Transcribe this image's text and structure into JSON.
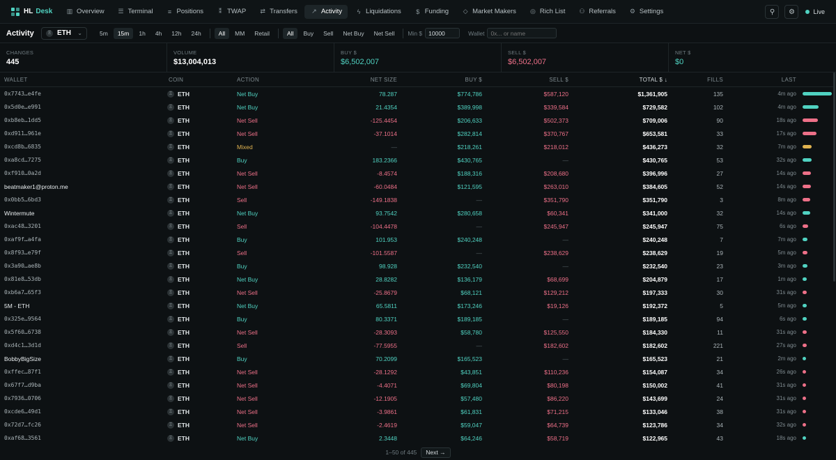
{
  "brand": {
    "hl": "HL",
    "desk": "Desk"
  },
  "nav": [
    {
      "label": "Overview",
      "icon": "bar-chart-icon",
      "glyph": "▥"
    },
    {
      "label": "Terminal",
      "icon": "terminal-icon",
      "glyph": "☰"
    },
    {
      "label": "Positions",
      "icon": "list-icon",
      "glyph": "≡"
    },
    {
      "label": "TWAP",
      "icon": "timer-icon",
      "glyph": "⁑"
    },
    {
      "label": "Transfers",
      "icon": "transfer-icon",
      "glyph": "⇄"
    },
    {
      "label": "Activity",
      "icon": "trend-icon",
      "glyph": "↗",
      "active": true
    },
    {
      "label": "Liquidations",
      "icon": "lightning-icon",
      "glyph": "ϟ"
    },
    {
      "label": "Funding",
      "icon": "coin-icon",
      "glyph": "$"
    },
    {
      "label": "Market Makers",
      "icon": "shield-icon",
      "glyph": "◇"
    },
    {
      "label": "Rich List",
      "icon": "dollar-circle-icon",
      "glyph": "◎"
    },
    {
      "label": "Referrals",
      "icon": "people-icon",
      "glyph": "⚇"
    },
    {
      "label": "Settings",
      "icon": "gear-icon",
      "glyph": "⚙"
    }
  ],
  "live_label": "Live",
  "filters": {
    "title": "Activity",
    "coin": "ETH",
    "timeframes": [
      "5m",
      "15m",
      "1h",
      "4h",
      "12h",
      "24h"
    ],
    "active_timeframe": "15m",
    "types": [
      "All",
      "MM",
      "Retail"
    ],
    "active_type": "All",
    "sides": [
      "All",
      "Buy",
      "Sell",
      "Net Buy",
      "Net Sell"
    ],
    "active_side": "All",
    "min_label": "Min $",
    "min_value": "10000",
    "wallet_label": "Wallet",
    "wallet_placeholder": "0x... or name"
  },
  "stats": [
    {
      "label": "CHANGES",
      "value": "445",
      "tone": ""
    },
    {
      "label": "VOLUME",
      "value": "$13,004,013",
      "tone": ""
    },
    {
      "label": "BUY $",
      "value": "$6,502,007",
      "tone": "buy"
    },
    {
      "label": "SELL $",
      "value": "$6,502,007",
      "tone": "sell"
    },
    {
      "label": "NET $",
      "value": "$0",
      "tone": "buy"
    }
  ],
  "columns": {
    "wallet": "WALLET",
    "coin": "COIN",
    "action": "ACTION",
    "net": "NET SIZE",
    "buy": "BUY $",
    "sell": "SELL $",
    "total": "TOTAL $ ↓",
    "fills": "FILLS",
    "last": "LAST"
  },
  "colors": {
    "buy": "#50d2c1",
    "sell": "#ed7088",
    "mixed": "#e0b350"
  },
  "rows": [
    {
      "wallet": "0x7743…e4fe",
      "named": false,
      "coin": "ETH",
      "action": "Net Buy",
      "net": "78.287",
      "buy": "$774,786",
      "sell": "$587,120",
      "total": "$1,361,905",
      "fills": "135",
      "last": "4m ago",
      "bar": 1.0
    },
    {
      "wallet": "0x5d0e…e991",
      "named": false,
      "coin": "ETH",
      "action": "Net Buy",
      "net": "21.4354",
      "buy": "$389,998",
      "sell": "$339,584",
      "total": "$729,582",
      "fills": "102",
      "last": "4m ago",
      "bar": 0.536
    },
    {
      "wallet": "0xb8eb…1dd5",
      "named": false,
      "coin": "ETH",
      "action": "Net Sell",
      "net": "-125.4454",
      "buy": "$206,633",
      "sell": "$502,373",
      "total": "$709,006",
      "fills": "90",
      "last": "18s ago",
      "bar": 0.521
    },
    {
      "wallet": "0xd911…961e",
      "named": false,
      "coin": "ETH",
      "action": "Net Sell",
      "net": "-37.1014",
      "buy": "$282,814",
      "sell": "$370,767",
      "total": "$653,581",
      "fills": "33",
      "last": "17s ago",
      "bar": 0.48
    },
    {
      "wallet": "0xcd8b…6835",
      "named": false,
      "coin": "ETH",
      "action": "Mixed",
      "net": "—",
      "buy": "$218,261",
      "sell": "$218,012",
      "total": "$436,273",
      "fills": "32",
      "last": "7m ago",
      "bar": 0.32
    },
    {
      "wallet": "0xa8cd…7275",
      "named": false,
      "coin": "ETH",
      "action": "Buy",
      "net": "183.2366",
      "buy": "$430,765",
      "sell": "—",
      "total": "$430,765",
      "fills": "53",
      "last": "32s ago",
      "bar": 0.316
    },
    {
      "wallet": "0xf910…0a2d",
      "named": false,
      "coin": "ETH",
      "action": "Net Sell",
      "net": "-8.4574",
      "buy": "$188,316",
      "sell": "$208,680",
      "total": "$396,996",
      "fills": "27",
      "last": "14s ago",
      "bar": 0.29
    },
    {
      "wallet": "beatmaker1@proton.me",
      "named": true,
      "coin": "ETH",
      "action": "Net Sell",
      "net": "-60.0484",
      "buy": "$121,595",
      "sell": "$263,010",
      "total": "$384,605",
      "fills": "52",
      "last": "14s ago",
      "bar": 0.282
    },
    {
      "wallet": "0x0bb5…6bd3",
      "named": false,
      "coin": "ETH",
      "action": "Sell",
      "net": "-149.1838",
      "buy": "—",
      "sell": "$351,790",
      "total": "$351,790",
      "fills": "3",
      "last": "8m ago",
      "bar": 0.258
    },
    {
      "wallet": "Wintermute",
      "named": true,
      "coin": "ETH",
      "action": "Net Buy",
      "net": "93.7542",
      "buy": "$280,658",
      "sell": "$60,341",
      "total": "$341,000",
      "fills": "32",
      "last": "14s ago",
      "bar": 0.25
    },
    {
      "wallet": "0xac48…3201",
      "named": false,
      "coin": "ETH",
      "action": "Sell",
      "net": "-104.4478",
      "buy": "—",
      "sell": "$245,947",
      "total": "$245,947",
      "fills": "75",
      "last": "6s ago",
      "bar": 0.18
    },
    {
      "wallet": "0xaf9f…a4fa",
      "named": false,
      "coin": "ETH",
      "action": "Buy",
      "net": "101.953",
      "buy": "$240,248",
      "sell": "—",
      "total": "$240,248",
      "fills": "7",
      "last": "7m ago",
      "bar": 0.176
    },
    {
      "wallet": "0x8f93…e79f",
      "named": false,
      "coin": "ETH",
      "action": "Sell",
      "net": "-101.5587",
      "buy": "—",
      "sell": "$238,629",
      "total": "$238,629",
      "fills": "19",
      "last": "5m ago",
      "bar": 0.175
    },
    {
      "wallet": "0x3a90…ae8b",
      "named": false,
      "coin": "ETH",
      "action": "Buy",
      "net": "98.928",
      "buy": "$232,540",
      "sell": "—",
      "total": "$232,540",
      "fills": "23",
      "last": "3m ago",
      "bar": 0.171
    },
    {
      "wallet": "0x81e8…53db",
      "named": false,
      "coin": "ETH",
      "action": "Net Buy",
      "net": "28.8282",
      "buy": "$136,179",
      "sell": "$68,699",
      "total": "$204,879",
      "fills": "17",
      "last": "1m ago",
      "bar": 0.15
    },
    {
      "wallet": "0xb6a7…65f3",
      "named": false,
      "coin": "ETH",
      "action": "Net Sell",
      "net": "-25.8679",
      "buy": "$68,121",
      "sell": "$129,212",
      "total": "$197,333",
      "fills": "30",
      "last": "31s ago",
      "bar": 0.145
    },
    {
      "wallet": "5M - ETH",
      "named": true,
      "coin": "ETH",
      "action": "Net Buy",
      "net": "65.5811",
      "buy": "$173,246",
      "sell": "$19,126",
      "total": "$192,372",
      "fills": "5",
      "last": "5m ago",
      "bar": 0.141
    },
    {
      "wallet": "0x325e…9564",
      "named": false,
      "coin": "ETH",
      "action": "Buy",
      "net": "80.3371",
      "buy": "$189,185",
      "sell": "—",
      "total": "$189,185",
      "fills": "94",
      "last": "6s ago",
      "bar": 0.139
    },
    {
      "wallet": "0x5f60…6738",
      "named": false,
      "coin": "ETH",
      "action": "Net Sell",
      "net": "-28.3093",
      "buy": "$58,780",
      "sell": "$125,550",
      "total": "$184,330",
      "fills": "11",
      "last": "31s ago",
      "bar": 0.135
    },
    {
      "wallet": "0xd4c1…3d1d",
      "named": false,
      "coin": "ETH",
      "action": "Sell",
      "net": "-77.5955",
      "buy": "—",
      "sell": "$182,602",
      "total": "$182,602",
      "fills": "221",
      "last": "27s ago",
      "bar": 0.134
    },
    {
      "wallet": "BobbyBigSize",
      "named": true,
      "coin": "ETH",
      "action": "Buy",
      "net": "70.2099",
      "buy": "$165,523",
      "sell": "—",
      "total": "$165,523",
      "fills": "21",
      "last": "2m ago",
      "bar": 0.122
    },
    {
      "wallet": "0xffec…87f1",
      "named": false,
      "coin": "ETH",
      "action": "Net Sell",
      "net": "-28.1292",
      "buy": "$43,851",
      "sell": "$110,236",
      "total": "$154,087",
      "fills": "34",
      "last": "26s ago",
      "bar": 0.113
    },
    {
      "wallet": "0x67f7…d9ba",
      "named": false,
      "coin": "ETH",
      "action": "Net Sell",
      "net": "-4.4071",
      "buy": "$69,804",
      "sell": "$80,198",
      "total": "$150,002",
      "fills": "41",
      "last": "31s ago",
      "bar": 0.11
    },
    {
      "wallet": "0x7936…0706",
      "named": false,
      "coin": "ETH",
      "action": "Net Sell",
      "net": "-12.1905",
      "buy": "$57,480",
      "sell": "$86,220",
      "total": "$143,699",
      "fills": "24",
      "last": "31s ago",
      "bar": 0.106
    },
    {
      "wallet": "0xcde6…49d1",
      "named": false,
      "coin": "ETH",
      "action": "Net Sell",
      "net": "-3.9861",
      "buy": "$61,831",
      "sell": "$71,215",
      "total": "$133,046",
      "fills": "38",
      "last": "31s ago",
      "bar": 0.098
    },
    {
      "wallet": "0x72d7…fc26",
      "named": false,
      "coin": "ETH",
      "action": "Net Sell",
      "net": "-2.4619",
      "buy": "$59,047",
      "sell": "$64,739",
      "total": "$123,786",
      "fills": "34",
      "last": "32s ago",
      "bar": 0.091
    },
    {
      "wallet": "0xaf68…3561",
      "named": false,
      "coin": "ETH",
      "action": "Net Buy",
      "net": "2.3448",
      "buy": "$64,246",
      "sell": "$58,719",
      "total": "$122,965",
      "fills": "43",
      "last": "18s ago",
      "bar": 0.09
    }
  ],
  "pager": {
    "text": "1–50 of 445",
    "next": "Next →"
  }
}
